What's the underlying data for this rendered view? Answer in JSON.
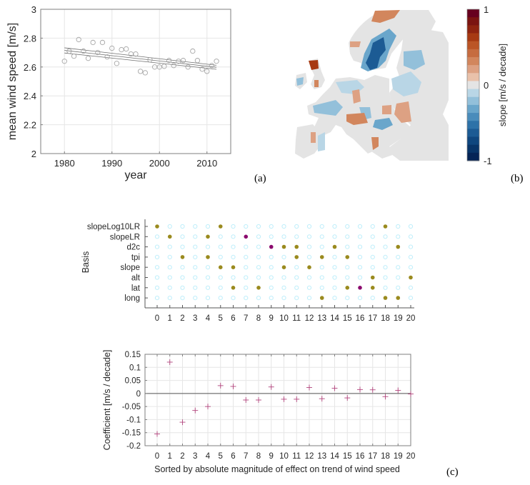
{
  "panel_labels": {
    "a": "(a)",
    "b": "(b)",
    "c": "(c)"
  },
  "colors": {
    "scatter_marker": "#a6a6a6",
    "trend_line": "#6e6e6e",
    "grid": "#e6e6e6",
    "axis": "#7f7f7f",
    "selected_dot": "#9a8a1e",
    "highlight_dot": "#8b0a6e",
    "empty_dot": "#bfeefa",
    "coef_marker": "#b2457d",
    "map_neutral": "#e4e4e4"
  },
  "chart_data": [
    {
      "id": "a",
      "type": "scatter",
      "title": "",
      "xlabel": "year",
      "ylabel": "mean wind speed [m/s]",
      "xlim": [
        1975,
        2015
      ],
      "ylim": [
        2,
        3
      ],
      "xticks": [
        1980,
        1990,
        2000,
        2010
      ],
      "yticks": [
        2,
        2.2,
        2.4,
        2.6,
        2.8,
        3
      ],
      "ytick_labels": [
        "2",
        "2.2",
        "2.4",
        "2.6",
        "2.8",
        "3"
      ],
      "grid": true,
      "x": [
        1980,
        1981,
        1982,
        1983,
        1984,
        1985,
        1986,
        1987,
        1988,
        1989,
        1990,
        1991,
        1992,
        1993,
        1994,
        1995,
        1996,
        1997,
        1998,
        1999,
        2000,
        2001,
        2002,
        2003,
        2004,
        2005,
        2006,
        2007,
        2008,
        2009,
        2010,
        2011,
        2012
      ],
      "y": [
        2.64,
        2.71,
        2.675,
        2.79,
        2.71,
        2.66,
        2.77,
        2.7,
        2.77,
        2.67,
        2.73,
        2.625,
        2.72,
        2.725,
        2.69,
        2.69,
        2.57,
        2.56,
        2.65,
        2.6,
        2.6,
        2.605,
        2.645,
        2.61,
        2.64,
        2.645,
        2.6,
        2.71,
        2.645,
        2.585,
        2.57,
        2.61,
        2.64
      ],
      "trend": {
        "x": [
          1980,
          2012
        ],
        "y": [
          2.715,
          2.598
        ],
        "ci_halfwidth": [
          0.018,
          0.014
        ]
      }
    },
    {
      "id": "b",
      "type": "heatmap",
      "title": "",
      "colorbar_label": "slope [m/s / decade]",
      "colorbar_range": [
        -1,
        1
      ],
      "colorbar_ticks": [
        1,
        0,
        -1
      ],
      "colorbar_tick_labels": [
        "1",
        "0",
        "-1"
      ],
      "colorbar_colors": [
        "#67001f",
        "#7b1411",
        "#8f2410",
        "#a73a13",
        "#bb5526",
        "#c66c40",
        "#d2865d",
        "#dda183",
        "#e9c1aa",
        "#e4e4e4",
        "#b9d6e6",
        "#93c0da",
        "#6aa6cb",
        "#4a8cbb",
        "#2d72a8",
        "#1c5b94",
        "#0f477f",
        "#083569",
        "#052456"
      ],
      "description": "Map of Europe showing trend slope of wind speed per station"
    },
    {
      "id": "c-top",
      "type": "scatter",
      "title": "",
      "xlabel": "",
      "ylabel": "Basis",
      "x_categories": [
        "0",
        "1",
        "2",
        "3",
        "4",
        "5",
        "6",
        "7",
        "8",
        "9",
        "10",
        "11",
        "12",
        "13",
        "14",
        "15",
        "16",
        "17",
        "18",
        "19",
        "20"
      ],
      "y_categories": [
        "slopeLog10LR",
        "slopeLR",
        "d2c",
        "tpi",
        "slope",
        "alt",
        "lat",
        "long"
      ],
      "selected": {
        "slopeLog10LR": [
          0,
          5,
          18
        ],
        "slopeLR": [
          1,
          4,
          7
        ],
        "d2c": [
          9,
          10,
          11,
          14,
          19
        ],
        "tpi": [
          2,
          4,
          11,
          13,
          15
        ],
        "slope": [
          5,
          6,
          10,
          12
        ],
        "alt": [
          17,
          20
        ],
        "lat": [
          6,
          8,
          15,
          16,
          17
        ],
        "long": [
          13,
          18,
          19
        ]
      },
      "highlighted": [
        [
          1,
          7
        ],
        [
          2,
          9
        ],
        [
          6,
          16
        ]
      ]
    },
    {
      "id": "c-bottom",
      "type": "scatter",
      "title": "",
      "xlabel": "Sorted by absolute magnitude of effect on trend of wind speed",
      "ylabel": "Coefficient [m/s / decade]",
      "xlim": [
        -1,
        21
      ],
      "ylim": [
        -0.2,
        0.15
      ],
      "xticks": [
        "0",
        "1",
        "2",
        "3",
        "4",
        "5",
        "6",
        "7",
        "8",
        "9",
        "10",
        "11",
        "12",
        "13",
        "14",
        "15",
        "16",
        "17",
        "18",
        "19",
        "20"
      ],
      "yticks": [
        0.15,
        0.1,
        0.05,
        0,
        -0.05,
        -0.1,
        -0.15,
        -0.2
      ],
      "ytick_labels": [
        "0.15",
        "0.1",
        "0.05",
        "0",
        "-0.05",
        "-0.1",
        "-0.15",
        "-0.2"
      ],
      "grid": true,
      "x": [
        0,
        1,
        2,
        3,
        4,
        5,
        6,
        7,
        8,
        9,
        10,
        11,
        12,
        13,
        14,
        15,
        16,
        17,
        18,
        19,
        20
      ],
      "y": [
        -0.155,
        0.12,
        -0.11,
        -0.065,
        -0.05,
        0.03,
        0.027,
        -0.025,
        -0.025,
        0.025,
        -0.022,
        -0.022,
        0.023,
        -0.02,
        0.02,
        -0.017,
        0.015,
        0.014,
        -0.012,
        0.012,
        -0.002
      ]
    }
  ]
}
